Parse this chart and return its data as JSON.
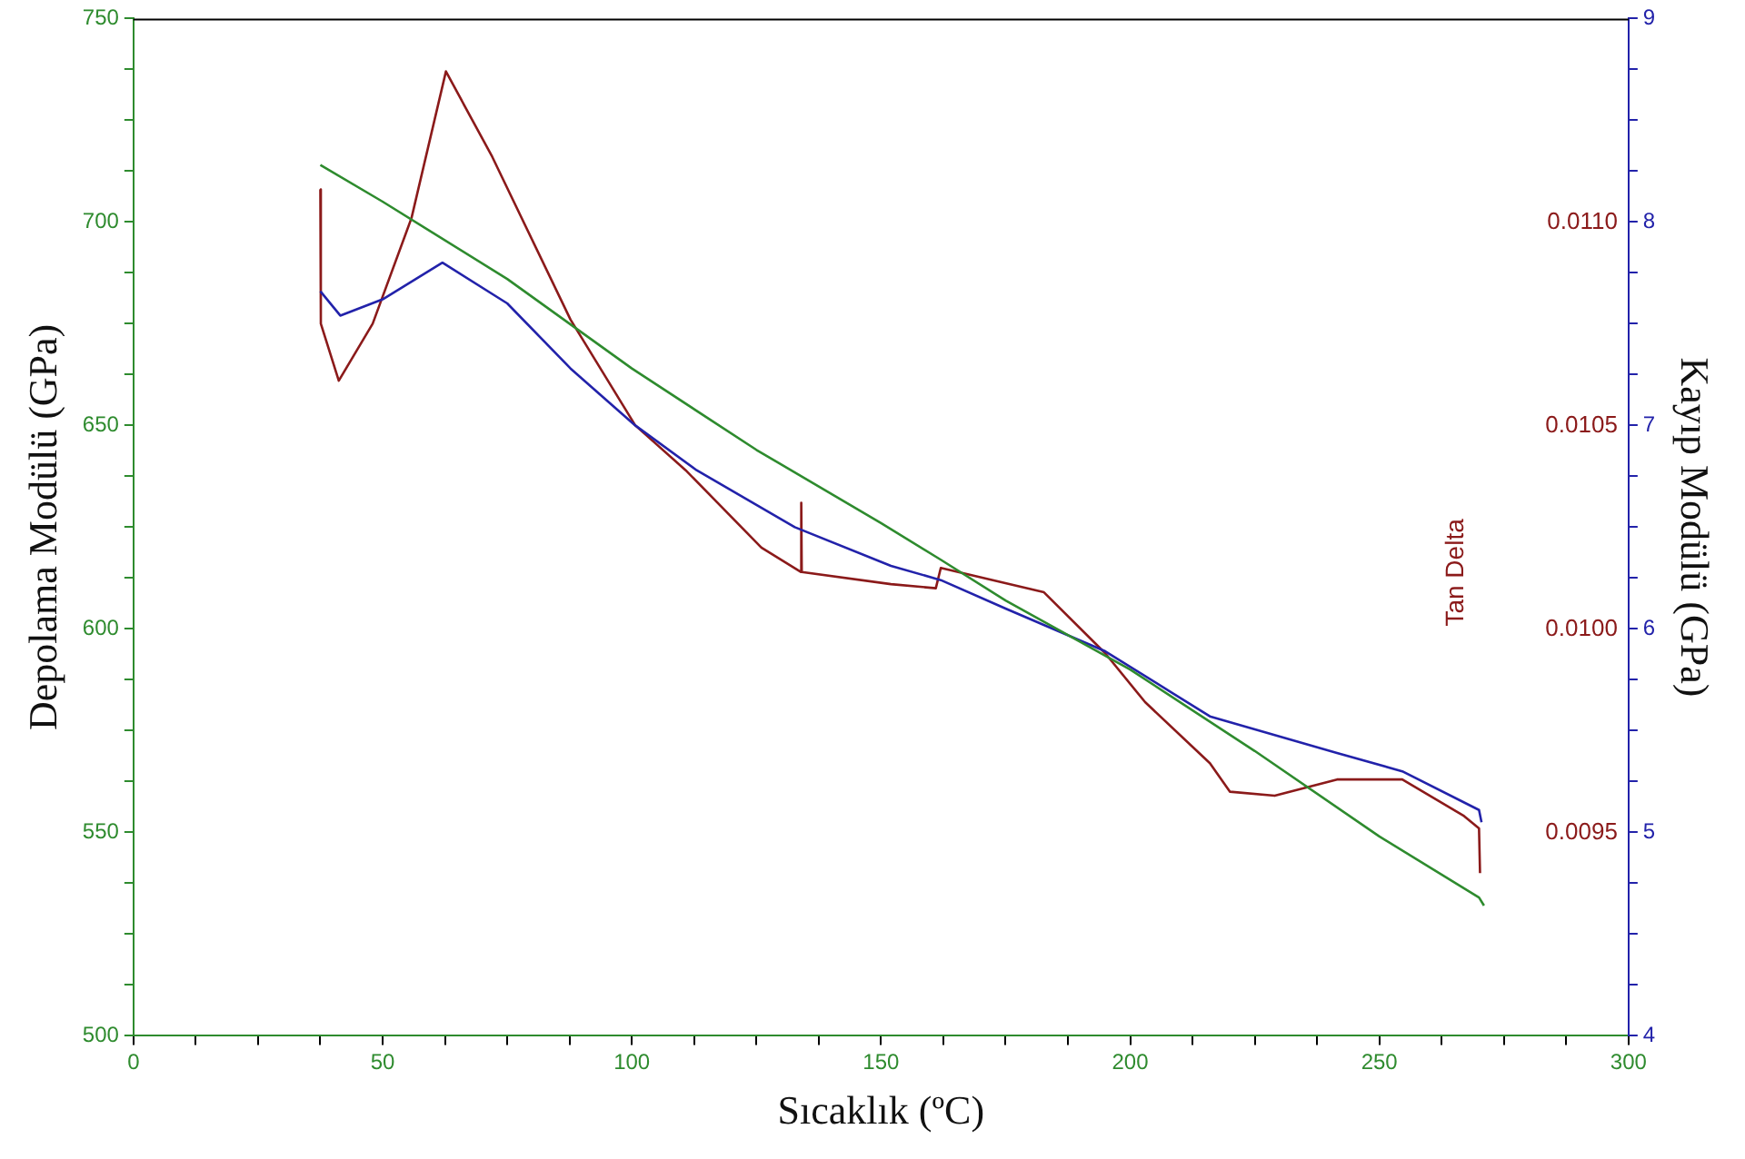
{
  "chart_data": {
    "type": "line",
    "xlabel": "Sıcaklık (ºC)",
    "ylabel": "Depolama Modülü (GPa)",
    "y2label": "Kayıp Modülü (GPa)",
    "y3label": "Tan Delta",
    "xlim": [
      0,
      300
    ],
    "xticks": [
      0,
      {
        "value": 12.5,
        "label": null
      },
      {
        "value": 25,
        "label": null
      },
      {
        "value": 37.5,
        "label": null
      },
      50,
      {
        "value": 62.5,
        "label": null
      },
      {
        "value": 75,
        "label": null
      },
      {
        "value": 87.5,
        "label": null
      },
      100,
      {
        "value": 112.5,
        "label": null
      },
      {
        "value": 125,
        "label": null
      },
      {
        "value": 137.5,
        "label": null
      },
      150,
      {
        "value": 162.5,
        "label": null
      },
      {
        "value": 175,
        "label": null
      },
      {
        "value": 187.5,
        "label": null
      },
      200,
      {
        "value": 212.5,
        "label": null
      },
      {
        "value": 225,
        "label": null
      },
      {
        "value": 237.5,
        "label": null
      },
      250,
      {
        "value": 262.5,
        "label": null
      },
      {
        "value": 275,
        "label": null
      },
      {
        "value": 287.5,
        "label": null
      },
      300
    ],
    "ylim": [
      500,
      750
    ],
    "yticks": [
      500,
      {
        "value": 512.5,
        "label": null
      },
      {
        "value": 525,
        "label": null
      },
      {
        "value": 537.5,
        "label": null
      },
      550,
      {
        "value": 562.5,
        "label": null
      },
      {
        "value": 575,
        "label": null
      },
      {
        "value": 587.5,
        "label": null
      },
      600,
      {
        "value": 612.5,
        "label": null
      },
      {
        "value": 625,
        "label": null
      },
      {
        "value": 637.5,
        "label": null
      },
      650,
      {
        "value": 662.5,
        "label": null
      },
      {
        "value": 675,
        "label": null
      },
      {
        "value": 687.5,
        "label": null
      },
      700,
      {
        "value": 712.5,
        "label": null
      },
      {
        "value": 725,
        "label": null
      },
      {
        "value": 737.5,
        "label": null
      },
      750
    ],
    "y2lim": [
      4,
      9
    ],
    "y2ticks": [
      4,
      {
        "value": 4.25,
        "label": null
      },
      {
        "value": 4.5,
        "label": null
      },
      {
        "value": 4.75,
        "label": null
      },
      5,
      {
        "value": 5.25,
        "label": null
      },
      {
        "value": 5.5,
        "label": null
      },
      {
        "value": 5.75,
        "label": null
      },
      6,
      {
        "value": 6.25,
        "label": null
      },
      {
        "value": 6.5,
        "label": null
      },
      {
        "value": 6.75,
        "label": null
      },
      7,
      {
        "value": 7.25,
        "label": null
      },
      {
        "value": 7.5,
        "label": null
      },
      {
        "value": 7.75,
        "label": null
      },
      8,
      {
        "value": 8.25,
        "label": null
      },
      {
        "value": 8.5,
        "label": null
      },
      {
        "value": 8.75,
        "label": null
      },
      9
    ],
    "y3lim": [
      0.009,
      0.0115
    ],
    "y3ticks": [
      {
        "value": 0.0095,
        "label": "0.0095"
      },
      {
        "value": 0.01,
        "label": "0.0100"
      },
      {
        "value": 0.0105,
        "label": "0.0105"
      },
      {
        "value": 0.011,
        "label": "0.0110"
      }
    ],
    "grid": false,
    "legend": false,
    "marker": "none",
    "line_style": "solid",
    "series": [
      {
        "color": "#2e8b2e",
        "axis": "y",
        "x": [
          37.5,
          50,
          75,
          100,
          125,
          150,
          162,
          175,
          200,
          225,
          250,
          270,
          271
        ],
        "values": [
          714,
          705,
          686,
          664,
          644,
          626,
          617,
          607,
          590,
          570,
          549,
          534,
          532
        ]
      },
      {
        "color": "#2222aa",
        "axis": "y2",
        "x": [
          37.5,
          41.5,
          50,
          62,
          75,
          87.7,
          100.7,
          113,
          132.7,
          152,
          162,
          175,
          195,
          216,
          241.5,
          254.6,
          270,
          270.5
        ],
        "values": [
          7.66,
          7.54,
          7.62,
          7.8,
          7.6,
          7.28,
          7.0,
          6.78,
          6.5,
          6.31,
          6.24,
          6.1,
          5.89,
          5.57,
          5.39,
          5.3,
          5.11,
          5.05
        ]
      },
      {
        "color": "#8b1a1a",
        "axis": "y3",
        "x": [
          37.5,
          37.6,
          41.2,
          48,
          55.8,
          62.7,
          72,
          87.7,
          100.7,
          110.8,
          126,
          133.9,
          134,
          134.1,
          152,
          161,
          162,
          182.7,
          195,
          203,
          216,
          220,
          229,
          241.5,
          254.6,
          267,
          270,
          270.2
        ],
        "values": [
          0.01108,
          0.01075,
          0.01061,
          0.01075,
          0.01101,
          0.01137,
          0.01116,
          0.01076,
          0.0105,
          0.01039,
          0.0102,
          0.01014,
          0.01031,
          0.01014,
          0.01011,
          0.0101,
          0.01015,
          0.01009,
          0.00994,
          0.00982,
          0.00967,
          0.0096,
          0.00959,
          0.00963,
          0.00963,
          0.00954,
          0.00951,
          0.0094
        ]
      }
    ]
  }
}
